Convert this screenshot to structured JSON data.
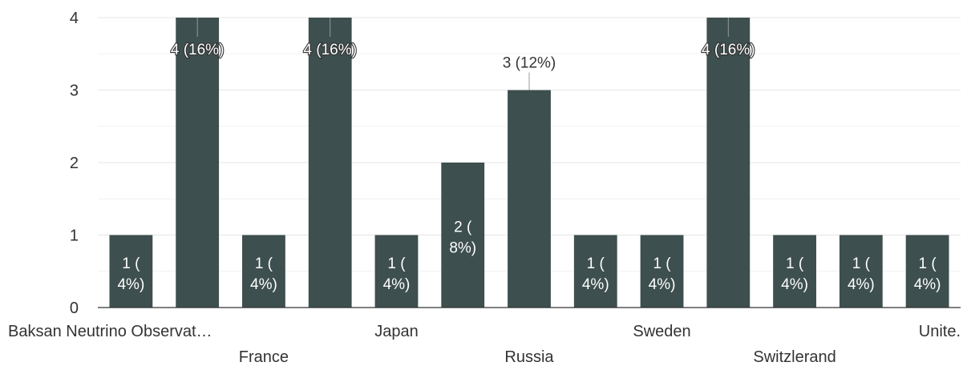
{
  "chart_data": {
    "type": "bar",
    "categories": [
      "Baksan Neutrino Observat…",
      "",
      "France",
      "",
      "Japan",
      "",
      "Russia",
      "",
      "Sweden",
      "",
      "Switzlerand",
      "",
      "Unite."
    ],
    "values": [
      1,
      4,
      1,
      4,
      1,
      2,
      3,
      1,
      1,
      4,
      1,
      1,
      1
    ],
    "data_labels": [
      [
        "1 (",
        "4%)"
      ],
      [
        "4 (16%)"
      ],
      [
        "1 (",
        "4%)"
      ],
      [
        "4 (16%)"
      ],
      [
        "1 (",
        "4%)"
      ],
      [
        "2 (",
        "8%)"
      ],
      [
        "3 (12%)"
      ],
      [
        "1 (",
        "4%)"
      ],
      [
        "1 (",
        "4%)"
      ],
      [
        "4 (16%)"
      ],
      [
        "1 (",
        "4%)"
      ],
      [
        "1 (",
        "4%)"
      ],
      [
        "1 (",
        "4%)"
      ]
    ],
    "yticks": [
      "0",
      "1",
      "2",
      "3",
      "4"
    ],
    "ylim": [
      0,
      4
    ],
    "grid": true,
    "title": "",
    "xlabel": "",
    "ylabel": "",
    "bar_color": "#3d4f4e",
    "grid_color": "#e6e6e6",
    "axis_color": "#333333"
  }
}
